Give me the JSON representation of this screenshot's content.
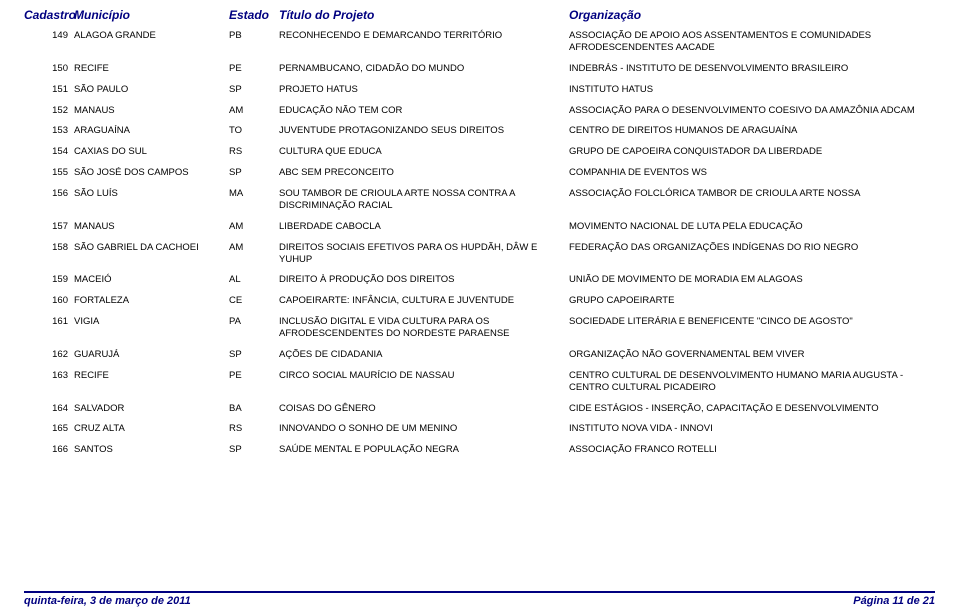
{
  "colors": {
    "header_text": "#000080",
    "body_text": "#000000",
    "footer_border": "#000080",
    "background": "#ffffff"
  },
  "headers": {
    "cadastro": "Cadastro",
    "municipio": "Município",
    "estado": "Estado",
    "titulo": "Título do Projeto",
    "organizacao": "Organização"
  },
  "rows": [
    {
      "cad": "149",
      "mun": "ALAGOA GRANDE",
      "est": "PB",
      "tit": "RECONHECENDO E DEMARCANDO TERRITÓRIO",
      "org": "ASSOCIAÇÃO DE APOIO AOS ASSENTAMENTOS E COMUNIDADES AFRODESCENDENTES AACADE"
    },
    {
      "cad": "150",
      "mun": "RECIFE",
      "est": "PE",
      "tit": "PERNAMBUCANO, CIDADÃO DO MUNDO",
      "org": "INDEBRÁS - INSTITUTO DE DESENVOLVIMENTO BRASILEIRO"
    },
    {
      "cad": "151",
      "mun": "SÃO PAULO",
      "est": "SP",
      "tit": "PROJETO HATUS",
      "org": "INSTITUTO HATUS"
    },
    {
      "cad": "152",
      "mun": "MANAUS",
      "est": "AM",
      "tit": "EDUCAÇÃO NÃO TEM COR",
      "org": "ASSOCIAÇÃO PARA O DESENVOLVIMENTO COESIVO DA AMAZÔNIA ADCAM"
    },
    {
      "cad": "153",
      "mun": "ARAGUAÍNA",
      "est": "TO",
      "tit": "JUVENTUDE PROTAGONIZANDO SEUS DIREITOS",
      "org": "CENTRO DE DIREITOS HUMANOS DE ARAGUAÍNA"
    },
    {
      "cad": "154",
      "mun": "CAXIAS DO SUL",
      "est": "RS",
      "tit": "CULTURA QUE EDUCA",
      "org": "GRUPO DE CAPOEIRA CONQUISTADOR DA LIBERDADE"
    },
    {
      "cad": "155",
      "mun": "SÃO JOSÉ DOS CAMPOS",
      "est": "SP",
      "tit": "ABC SEM PRECONCEITO",
      "org": "COMPANHIA DE EVENTOS WS"
    },
    {
      "cad": "156",
      "mun": "SÃO LUÍS",
      "est": "MA",
      "tit": "SOU TAMBOR DE CRIOULA ARTE NOSSA CONTRA A DISCRIMINAÇÃO RACIAL",
      "org": "ASSOCIAÇÃO FOLCLÓRICA TAMBOR DE CRIOULA ARTE NOSSA"
    },
    {
      "cad": "157",
      "mun": "MANAUS",
      "est": "AM",
      "tit": "LIBERDADE CABOCLA",
      "org": "MOVIMENTO NACIONAL DE LUTA PELA EDUCAÇÃO"
    },
    {
      "cad": "158",
      "mun": "SÃO GABRIEL DA CACHOEI",
      "est": "AM",
      "tit": "DIREITOS SOCIAIS EFETIVOS PARA OS HUPDÃH, DÂW E YUHUP",
      "org": "FEDERAÇÃO DAS ORGANIZAÇÕES INDÍGENAS DO RIO NEGRO"
    },
    {
      "cad": "159",
      "mun": "MACEIÓ",
      "est": "AL",
      "tit": "DIREITO À PRODUÇÃO DOS DIREITOS",
      "org": "UNIÃO DE MOVIMENTO DE MORADIA EM ALAGOAS"
    },
    {
      "cad": "160",
      "mun": "FORTALEZA",
      "est": "CE",
      "tit": "CAPOEIRARTE: INFÂNCIA, CULTURA E JUVENTUDE",
      "org": "GRUPO CAPOEIRARTE"
    },
    {
      "cad": "161",
      "mun": "VIGIA",
      "est": "PA",
      "tit": "INCLUSÃO DIGITAL E VIDA CULTURA PARA OS AFRODESCENDENTES DO NORDESTE PARAENSE",
      "org": "SOCIEDADE LITERÁRIA E BENEFICENTE \"CINCO DE AGOSTO\""
    },
    {
      "cad": "162",
      "mun": "GUARUJÁ",
      "est": "SP",
      "tit": "AÇÕES DE CIDADANIA",
      "org": "ORGANIZAÇÃO NÃO GOVERNAMENTAL BEM VIVER"
    },
    {
      "cad": "163",
      "mun": "RECIFE",
      "est": "PE",
      "tit": "CIRCO SOCIAL MAURÍCIO DE NASSAU",
      "org": "CENTRO CULTURAL DE DESENVOLVIMENTO HUMANO MARIA AUGUSTA - CENTRO CULTURAL PICADEIRO"
    },
    {
      "cad": "164",
      "mun": "SALVADOR",
      "est": "BA",
      "tit": "COISAS DO GÊNERO",
      "org": "CIDE ESTÁGIOS - INSERÇÃO, CAPACITAÇÃO E DESENVOLVIMENTO"
    },
    {
      "cad": "165",
      "mun": "CRUZ ALTA",
      "est": "RS",
      "tit": "INNOVANDO O SONHO DE UM MENINO",
      "org": "INSTITUTO NOVA VIDA - INNOVI"
    },
    {
      "cad": "166",
      "mun": "SANTOS",
      "est": "SP",
      "tit": "SAÚDE MENTAL E POPULAÇÃO NEGRA",
      "org": "ASSOCIAÇÃO FRANCO ROTELLI"
    }
  ],
  "footer": {
    "date": "quinta-feira, 3 de março de 2011",
    "page": "Página 11 de 21"
  }
}
